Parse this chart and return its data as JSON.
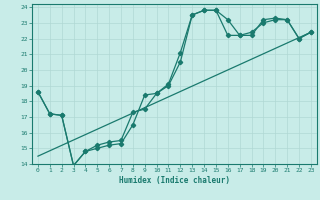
{
  "xlabel": "Humidex (Indice chaleur)",
  "bg_color": "#c8ece8",
  "grid_color": "#b0d8d4",
  "line_color": "#1a7a6e",
  "xlim": [
    -0.5,
    23.5
  ],
  "ylim": [
    14,
    24.2
  ],
  "xticks": [
    0,
    1,
    2,
    3,
    4,
    5,
    6,
    7,
    8,
    9,
    10,
    11,
    12,
    13,
    14,
    15,
    16,
    17,
    18,
    19,
    20,
    21,
    22,
    23
  ],
  "yticks": [
    14,
    15,
    16,
    17,
    18,
    19,
    20,
    21,
    22,
    23,
    24
  ],
  "series1_x": [
    0,
    1,
    2,
    3,
    4,
    5,
    6,
    7,
    8,
    9,
    10,
    11,
    12,
    13,
    14,
    15,
    16,
    17,
    18,
    19,
    20,
    21,
    22,
    23
  ],
  "series1_y": [
    18.6,
    17.2,
    17.1,
    13.9,
    14.8,
    15.2,
    15.4,
    15.5,
    17.3,
    17.5,
    18.5,
    19.1,
    21.1,
    23.5,
    23.8,
    23.8,
    23.2,
    22.2,
    22.2,
    23.2,
    23.3,
    23.2,
    22.0,
    22.4
  ],
  "series2_x": [
    0,
    1,
    2,
    3,
    4,
    5,
    6,
    7,
    8,
    9,
    10,
    11,
    12,
    13,
    14,
    15,
    16,
    17,
    18,
    19,
    20,
    21,
    22,
    23
  ],
  "series2_y": [
    18.6,
    17.2,
    17.1,
    13.9,
    14.8,
    15.0,
    15.2,
    15.3,
    16.5,
    18.4,
    18.5,
    19.0,
    20.5,
    23.5,
    23.8,
    23.8,
    22.2,
    22.2,
    22.4,
    23.0,
    23.2,
    23.2,
    22.0,
    22.4
  ],
  "series3_x": [
    0,
    23
  ],
  "series3_y": [
    14.5,
    22.4
  ]
}
